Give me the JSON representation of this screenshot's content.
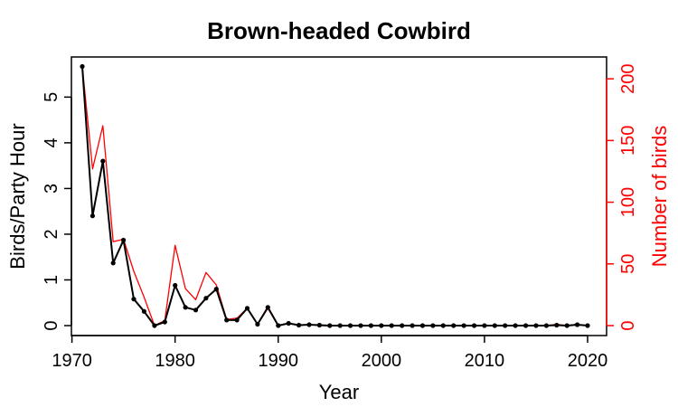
{
  "chart_data": {
    "type": "line",
    "title": "Brown-headed Cowbird",
    "xlabel": "Year",
    "ylabel": "Birds/Party Hour",
    "y2label": "Number of birds",
    "xlim": [
      1970,
      2020
    ],
    "ylim": [
      0,
      5.8
    ],
    "y2lim": [
      0,
      214
    ],
    "x_ticks": [
      1970,
      1980,
      1990,
      2000,
      2010,
      2020
    ],
    "y_ticks": [
      0,
      1,
      2,
      3,
      4,
      5
    ],
    "y2_ticks": [
      0,
      50,
      100,
      150,
      200
    ],
    "x": [
      1971,
      1972,
      1973,
      1974,
      1975,
      1976,
      1977,
      1978,
      1979,
      1980,
      1981,
      1982,
      1983,
      1984,
      1985,
      1986,
      1987,
      1988,
      1989,
      1990,
      1991,
      1992,
      1993,
      1994,
      1995,
      1996,
      1997,
      1998,
      1999,
      2000,
      2001,
      2002,
      2003,
      2004,
      2005,
      2006,
      2007,
      2008,
      2009,
      2010,
      2011,
      2012,
      2013,
      2014,
      2015,
      2016,
      2017,
      2018,
      2019,
      2020
    ],
    "series": [
      {
        "axis": "left",
        "color": "#000000",
        "markers": true,
        "values": [
          5.67,
          2.4,
          3.6,
          1.37,
          1.87,
          0.58,
          0.31,
          0.0,
          0.08,
          0.88,
          0.4,
          0.34,
          0.6,
          0.8,
          0.12,
          0.12,
          0.38,
          0.03,
          0.4,
          0.0,
          0.05,
          0.01,
          0.02,
          0.01,
          0.0,
          0.0,
          0.0,
          0.0,
          0.0,
          0.0,
          0.0,
          0.0,
          0.0,
          0.0,
          0.0,
          0.0,
          0.0,
          0.0,
          0.0,
          0.0,
          0.0,
          0.0,
          0.0,
          0.0,
          0.0,
          0.0,
          0.01,
          0.0,
          0.02,
          0.0
        ]
      },
      {
        "axis": "right",
        "color": "#ff0000",
        "markers": false,
        "values": [
          210,
          127,
          162,
          68,
          70,
          44,
          23,
          0,
          4,
          65,
          30,
          21,
          43,
          33,
          5,
          6,
          14,
          1,
          14,
          0,
          2,
          0,
          1,
          0,
          0,
          0,
          0,
          0,
          0,
          0,
          0,
          0,
          0,
          0,
          0,
          0,
          0,
          0,
          0,
          0,
          0,
          0,
          0,
          0,
          0,
          0,
          1,
          0,
          1,
          0
        ]
      }
    ],
    "colors": {
      "left_axis": "#000000",
      "right_axis": "#ff0000"
    }
  }
}
